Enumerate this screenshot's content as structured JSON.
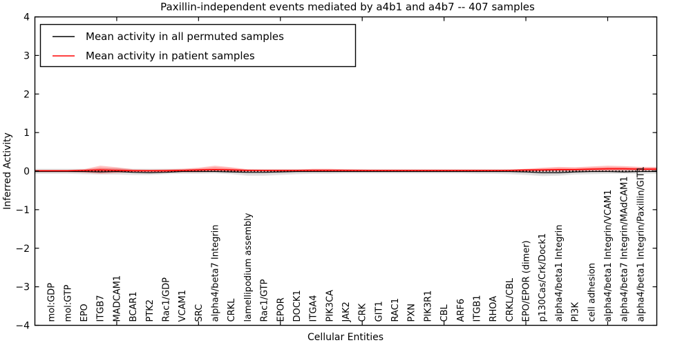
{
  "figure": {
    "background": "#ffffff"
  },
  "chart_data": {
    "type": "line",
    "title": "Paxillin-independent events mediated by a4b1 and a4b7 -- 407 samples",
    "xlabel": "Cellular Entities",
    "ylabel": "Inferred Activity",
    "ylim": [
      -4,
      4
    ],
    "xlim_categories": [
      0,
      38
    ],
    "yticks": [
      -4,
      -3,
      -2,
      -1,
      0,
      1,
      2,
      3,
      4
    ],
    "xticks_major_category_positions": [
      5,
      10,
      15,
      20,
      25,
      30,
      35
    ],
    "grid": false,
    "zero_line": {
      "value": 0,
      "style": "dotted",
      "color": "#000000"
    },
    "legend": {
      "position": "upper-left",
      "entries": [
        {
          "label": "Mean activity in all permuted samples",
          "color": "#000000"
        },
        {
          "label": "Mean activity in patient samples",
          "color": "#ff0000"
        }
      ]
    },
    "categories": [
      "mol:GDP",
      "mol:GTP",
      "EPO",
      "ITGB7",
      "MADCAM1",
      "BCAR1",
      "PTK2",
      "Rac1/GDP",
      "VCAM1",
      "SRC",
      "alpha4/beta7 Integrin",
      "CRKL",
      "lamellipodium assembly",
      "Rac1/GTP",
      "EPOR",
      "DOCK1",
      "ITGA4",
      "PIK3CA",
      "JAK2",
      "CRK",
      "GIT1",
      "RAC1",
      "PXN",
      "PIK3R1",
      "CBL",
      "ARF6",
      "ITGB1",
      "RHOA",
      "CRKL/CBL",
      "EPO/EPOR (dimer)",
      "p130Cas/Crk/Dock1",
      "alpha4/beta1 Integrin",
      "PI3K",
      "cell adhesion",
      "alpha4/beta1 Integrin/VCAM1",
      "alpha4/beta7 Integrin/MAdCAM1",
      "alpha4/beta1 Integrin/Paxillin/GIT1"
    ],
    "series": [
      {
        "name": "Mean activity in all permuted samples",
        "color": "#000000",
        "width": 1.2,
        "values": [
          -0.01,
          -0.01,
          -0.01,
          -0.02,
          -0.01,
          -0.03,
          -0.04,
          -0.03,
          -0.01,
          -0.01,
          -0.01,
          -0.02,
          -0.03,
          -0.03,
          -0.02,
          -0.01,
          -0.01,
          -0.01,
          -0.01,
          -0.01,
          -0.01,
          -0.01,
          -0.01,
          -0.01,
          -0.01,
          -0.01,
          -0.01,
          -0.01,
          -0.01,
          -0.02,
          -0.04,
          -0.04,
          -0.02,
          -0.01,
          -0.01,
          -0.02,
          -0.01
        ]
      },
      {
        "name": "Mean activity in patient samples",
        "color": "#ff0000",
        "width": 1.6,
        "values": [
          0.01,
          0.01,
          0.02,
          0.03,
          0.02,
          0.01,
          0.01,
          0.01,
          0.02,
          0.03,
          0.04,
          0.03,
          0.02,
          0.02,
          0.02,
          0.02,
          0.02,
          0.02,
          0.02,
          0.02,
          0.02,
          0.02,
          0.02,
          0.02,
          0.02,
          0.02,
          0.02,
          0.02,
          0.02,
          0.03,
          0.03,
          0.04,
          0.04,
          0.05,
          0.06,
          0.06,
          0.05
        ]
      }
    ],
    "bands": [
      {
        "name": "permuted-samples-range",
        "color": "#bdbdbd",
        "opacity": 0.42,
        "upper": [
          0.06,
          0.06,
          0.06,
          0.07,
          0.08,
          0.06,
          0.06,
          0.06,
          0.06,
          0.06,
          0.05,
          0.05,
          0.05,
          0.05,
          0.05,
          0.05,
          0.05,
          0.05,
          0.05,
          0.05,
          0.05,
          0.05,
          0.05,
          0.05,
          0.05,
          0.05,
          0.05,
          0.05,
          0.05,
          0.05,
          0.04,
          0.04,
          0.05,
          0.05,
          0.05,
          0.06,
          0.06
        ],
        "lower": [
          -0.07,
          -0.07,
          -0.08,
          -0.09,
          -0.09,
          -0.1,
          -0.1,
          -0.08,
          -0.07,
          -0.07,
          -0.06,
          -0.08,
          -0.12,
          -0.12,
          -0.1,
          -0.08,
          -0.07,
          -0.07,
          -0.06,
          -0.06,
          -0.06,
          -0.06,
          -0.06,
          -0.06,
          -0.06,
          -0.06,
          -0.07,
          -0.07,
          -0.08,
          -0.1,
          -0.13,
          -0.12,
          -0.09,
          -0.08,
          -0.07,
          -0.07,
          -0.07
        ]
      },
      {
        "name": "patient-samples-range",
        "color": "#ff2a2a",
        "opacity": 0.28,
        "upper": [
          0.03,
          0.03,
          0.05,
          0.14,
          0.1,
          0.05,
          0.04,
          0.05,
          0.06,
          0.09,
          0.14,
          0.1,
          0.05,
          0.04,
          0.04,
          0.04,
          0.06,
          0.06,
          0.05,
          0.04,
          0.03,
          0.03,
          0.03,
          0.03,
          0.03,
          0.03,
          0.03,
          0.03,
          0.04,
          0.06,
          0.09,
          0.11,
          0.1,
          0.12,
          0.14,
          0.13,
          0.11
        ],
        "lower": [
          -0.02,
          -0.02,
          -0.04,
          -0.07,
          -0.05,
          -0.02,
          -0.02,
          -0.03,
          -0.03,
          -0.03,
          -0.02,
          -0.02,
          -0.01,
          -0.01,
          -0.01,
          -0.01,
          -0.01,
          -0.01,
          -0.01,
          -0.01,
          -0.01,
          -0.01,
          -0.01,
          -0.01,
          -0.01,
          -0.01,
          -0.01,
          -0.01,
          -0.01,
          -0.01,
          -0.01,
          -0.01,
          0.0,
          0.0,
          0.0,
          0.01,
          0.01
        ]
      }
    ]
  }
}
